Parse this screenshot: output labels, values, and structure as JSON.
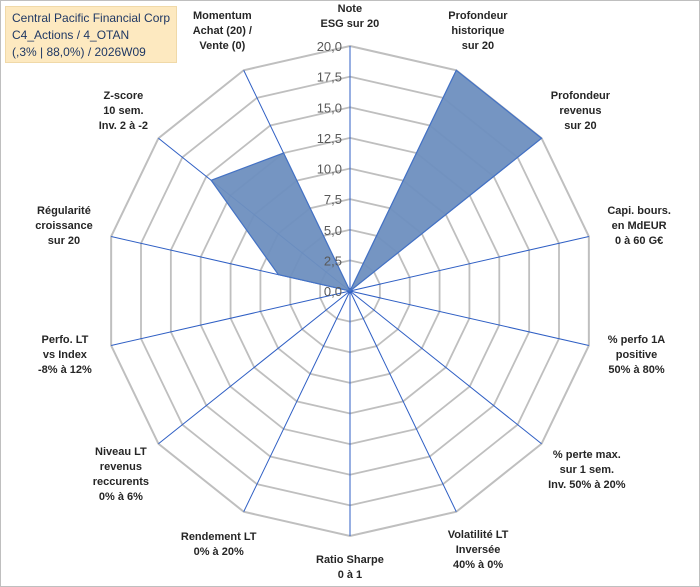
{
  "title_box": {
    "line1": "Central Pacific Financial Corp",
    "line2": "C4_Actions / 4_OTAN",
    "line3": "(,3% | 88,0%) / 2026W09"
  },
  "colors": {
    "fill": "#6e8fbf",
    "stroke": "#4472c4",
    "grid": "#bfbfbf",
    "spoke": "#2f5fc4",
    "title_box_bg": "#fde9c0"
  },
  "chart_data": {
    "type": "radar",
    "rmin": 0,
    "rmax": 20,
    "ticks": [
      "0,0",
      "2,5",
      "5,0",
      "7,5",
      "10,0",
      "12,5",
      "15,0",
      "17,5",
      "20,0"
    ],
    "axes": [
      {
        "label": [
          "Note",
          "ESG sur 20"
        ],
        "value": 0
      },
      {
        "label": [
          "Profondeur",
          "historique",
          "sur 20"
        ],
        "value": 20
      },
      {
        "label": [
          "Profondeur",
          "revenus",
          "sur 20"
        ],
        "value": 20
      },
      {
        "label": [
          "Capi. bours.",
          "en MdEUR",
          "0 à 60 G€"
        ],
        "value": 0
      },
      {
        "label": [
          "% perfo 1A",
          "positive",
          "50% à 80%"
        ],
        "value": 0
      },
      {
        "label": [
          "% perte max.",
          "sur 1 sem.",
          "Inv. 50% à 20%"
        ],
        "value": 0
      },
      {
        "label": [
          "Volatilité LT",
          "Inversée",
          "40% à 0%"
        ],
        "value": 0
      },
      {
        "label": [
          "Ratio Sharpe",
          "0 à 1"
        ],
        "value": 0
      },
      {
        "label": [
          "Rendement LT",
          "0% à 20%"
        ],
        "value": 0
      },
      {
        "label": [
          "Niveau LT",
          "revenus",
          "reccurents",
          "0% à 6%"
        ],
        "value": 0
      },
      {
        "label": [
          "Perfo. LT",
          "vs Index",
          "-8% à 12%"
        ],
        "value": 0
      },
      {
        "label": [
          "Régularité",
          "croissance",
          "sur 20"
        ],
        "value": 6
      },
      {
        "label": [
          "Z-score",
          "10 sem.",
          "Inv. 2 à -2"
        ],
        "value": 14.5
      },
      {
        "label": [
          "Momentum",
          "Achat (20) /",
          "Vente (0)"
        ],
        "value": 12.5
      }
    ]
  }
}
